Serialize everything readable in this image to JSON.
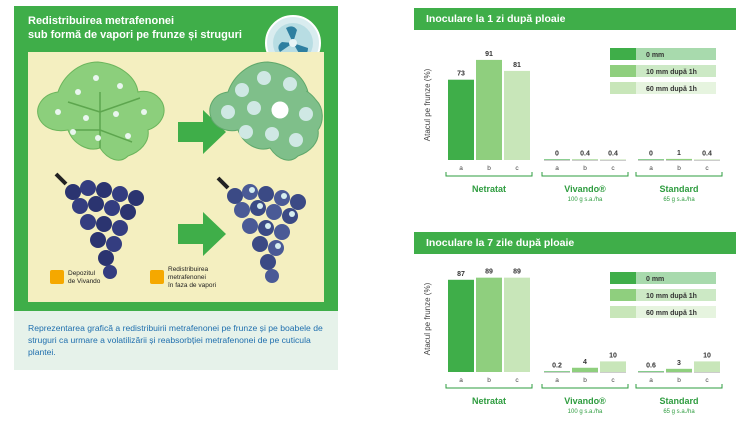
{
  "illustration": {
    "title_line1": "Redistribuirea metrafenonei",
    "title_line2": "sub formă de vapori pe frunze și struguri",
    "legend": [
      {
        "line1": "Depozitul",
        "line2": "de Vivando",
        "line3": ""
      },
      {
        "line1": "Redistribuirea",
        "line2": "metrafenonei",
        "line3": "în faza de vapori"
      }
    ],
    "caption": "Reprezentarea grafică a redistribuirii metrafenonei pe frunze și pe boabele de struguri ca urmare a volatilizării și reabsorbției metrafenonei de pe cuticula plantei."
  },
  "colors": {
    "brand_green": "#3fae49",
    "bar_0mm": "#3fae49",
    "bar_10mm": "#8fcf7e",
    "bar_60mm": "#c8e6b9",
    "caption_blue": "#1f6fae",
    "group_label": "#2e9c3f"
  },
  "chart_data": [
    {
      "type": "bar",
      "title": "Inoculare la 1 zi după ploaie",
      "ylabel": "Atacul pe frunze (%)",
      "ylim": [
        0,
        100
      ],
      "legend_position": "top-right",
      "groups": [
        {
          "name": "Netratat",
          "sub": "",
          "x_labels": [
            "a",
            "b",
            "c"
          ],
          "values": [
            73,
            91,
            81
          ],
          "labels": [
            "73",
            "91",
            "81"
          ]
        },
        {
          "name": "Vivando®",
          "sub": "100 g s.a./ha",
          "x_labels": [
            "a",
            "b",
            "c"
          ],
          "values": [
            0,
            0.4,
            0.4
          ],
          "labels": [
            "0",
            "0.4",
            "0.4"
          ]
        },
        {
          "name": "Standard",
          "sub": "65 g s.a./ha",
          "x_labels": [
            "a",
            "b",
            "c"
          ],
          "values": [
            0,
            1,
            0.4
          ],
          "labels": [
            "0",
            "1",
            "0.4"
          ]
        }
      ],
      "series": [
        {
          "name": "0 mm"
        },
        {
          "name": "10 mm după 1h"
        },
        {
          "name": "60 mm după 1h"
        }
      ]
    },
    {
      "type": "bar",
      "title": "Inoculare la 7 zile după ploaie",
      "ylabel": "Atacul pe frunze (%)",
      "ylim": [
        0,
        100
      ],
      "legend_position": "top-right",
      "groups": [
        {
          "name": "Netratat",
          "sub": "",
          "x_labels": [
            "a",
            "b",
            "c"
          ],
          "values": [
            87,
            89,
            89
          ],
          "labels": [
            "87",
            "89",
            "89"
          ]
        },
        {
          "name": "Vivando®",
          "sub": "100 g s.a./ha",
          "x_labels": [
            "a",
            "b",
            "c"
          ],
          "values": [
            0.2,
            4,
            10
          ],
          "labels": [
            "0.2",
            "4",
            "10"
          ]
        },
        {
          "name": "Standard",
          "sub": "65 g s.a./ha",
          "x_labels": [
            "a",
            "b",
            "c"
          ],
          "values": [
            0.6,
            3,
            10
          ],
          "labels": [
            "0.6",
            "3",
            "10"
          ]
        }
      ],
      "series": [
        {
          "name": "0 mm"
        },
        {
          "name": "10 mm după 1h"
        },
        {
          "name": "60 mm după 1h"
        }
      ]
    }
  ]
}
